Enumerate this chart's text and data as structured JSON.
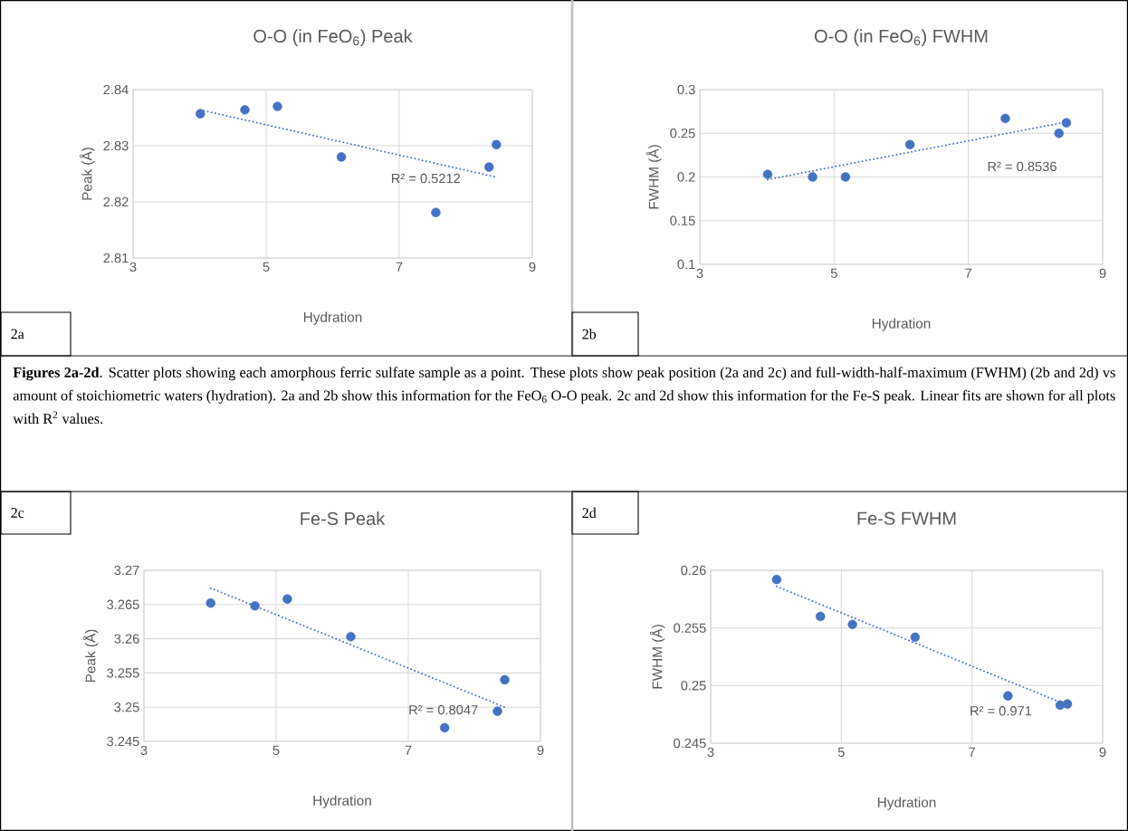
{
  "chart_data": [
    {
      "type": "scatter",
      "title": "O-O (in FeO$_{6}$) Peak",
      "xlabel": "Hydration",
      "ylabel": "Peak (Å)",
      "xlim": [
        3,
        9
      ],
      "xticks": [
        3,
        5,
        7,
        9
      ],
      "ylim": [
        2.81,
        2.84
      ],
      "yticks": [
        2.81,
        2.82,
        2.83,
        2.84
      ],
      "grid": true,
      "series": [
        {
          "type": "scatter",
          "marker": "circle",
          "color": "#4472c4",
          "x": [
            4.01,
            4.68,
            5.17,
            6.13,
            7.55,
            8.35,
            8.46
          ],
          "values": [
            2.8357,
            2.8364,
            2.837,
            2.828,
            2.8181,
            2.8262,
            2.8302
          ]
        },
        {
          "type": "line",
          "line_style": "dotted",
          "color": "#4472c4",
          "x": [
            4.01,
            8.46
          ],
          "values": [
            2.8364,
            2.8244
          ]
        }
      ],
      "annotations": [
        "R² = 0.5212",
        "2a"
      ]
    },
    {
      "type": "scatter",
      "title": "O-O (in FeO$_{6}$) FWHM",
      "xlabel": "Hydration",
      "ylabel": "FWHM (Å)",
      "xlim": [
        3,
        9
      ],
      "xticks": [
        3,
        5,
        7,
        9
      ],
      "ylim": [
        0.1,
        0.3
      ],
      "yticks": [
        0.1,
        0.15,
        0.2,
        0.25,
        0.3
      ],
      "grid": true,
      "series": [
        {
          "type": "scatter",
          "marker": "circle",
          "color": "#4472c4",
          "x": [
            4.01,
            4.68,
            5.17,
            6.13,
            7.55,
            8.35,
            8.46
          ],
          "values": [
            0.203,
            0.2,
            0.2,
            0.237,
            0.267,
            0.25,
            0.262
          ]
        },
        {
          "type": "line",
          "line_style": "dotted",
          "color": "#4472c4",
          "x": [
            4.01,
            8.46
          ],
          "values": [
            0.197,
            0.263
          ]
        }
      ],
      "annotations": [
        "R² = 0.8536",
        "2b"
      ]
    },
    {
      "type": "other",
      "annotations": [
        "**Figures 2a-2d**. Scatter plots showing each amorphous ferric sulfate sample as a point. These plots show peak position (2a and 2c) and full-width-half-maximum (FWHM) (2b and 2d) vs amount of stoichiometric waters (hydration). 2a and 2b show this information for the FeO$_{6}$ O-O peak. 2c and 2d show this information for the Fe-S peak. Linear fits are shown for all plots with R$^{2}$ values."
      ]
    },
    {
      "type": "scatter",
      "title": "Fe-S Peak",
      "xlabel": "Hydration",
      "ylabel": "Peak (Å)",
      "xlim": [
        3,
        9
      ],
      "xticks": [
        3,
        5,
        7,
        9
      ],
      "ylim": [
        3.245,
        3.27
      ],
      "yticks": [
        3.245,
        3.25,
        3.255,
        3.26,
        3.265,
        3.27
      ],
      "grid": true,
      "series": [
        {
          "type": "scatter",
          "marker": "circle",
          "color": "#4472c4",
          "x": [
            4.01,
            4.68,
            5.17,
            6.13,
            7.55,
            8.35,
            8.46
          ],
          "values": [
            3.2652,
            3.2648,
            3.2658,
            3.2603,
            3.247,
            3.2494,
            3.254
          ]
        },
        {
          "type": "line",
          "line_style": "dotted",
          "color": "#4472c4",
          "x": [
            4.01,
            8.46
          ],
          "values": [
            3.2674,
            3.25
          ]
        }
      ],
      "annotations": [
        "R² = 0.8047",
        "2c"
      ]
    },
    {
      "type": "scatter",
      "title": "Fe-S FWHM",
      "xlabel": "Hydration",
      "ylabel": "FWHM (Å)",
      "xlim": [
        3,
        9
      ],
      "xticks": [
        3,
        5,
        7,
        9
      ],
      "ylim": [
        0.245,
        0.26
      ],
      "yticks": [
        0.245,
        0.25,
        0.255,
        0.26
      ],
      "grid": true,
      "series": [
        {
          "type": "scatter",
          "marker": "circle",
          "color": "#4472c4",
          "x": [
            4.01,
            4.68,
            5.17,
            6.13,
            7.55,
            8.35,
            8.46
          ],
          "values": [
            0.2592,
            0.256,
            0.2553,
            0.2542,
            0.2491,
            0.2483,
            0.2484
          ]
        },
        {
          "type": "line",
          "line_style": "dotted",
          "color": "#4472c4",
          "x": [
            4.01,
            8.46
          ],
          "values": [
            0.2586,
            0.2483
          ]
        }
      ],
      "annotations": [
        "R² = 0.971",
        "2d"
      ]
    }
  ]
}
